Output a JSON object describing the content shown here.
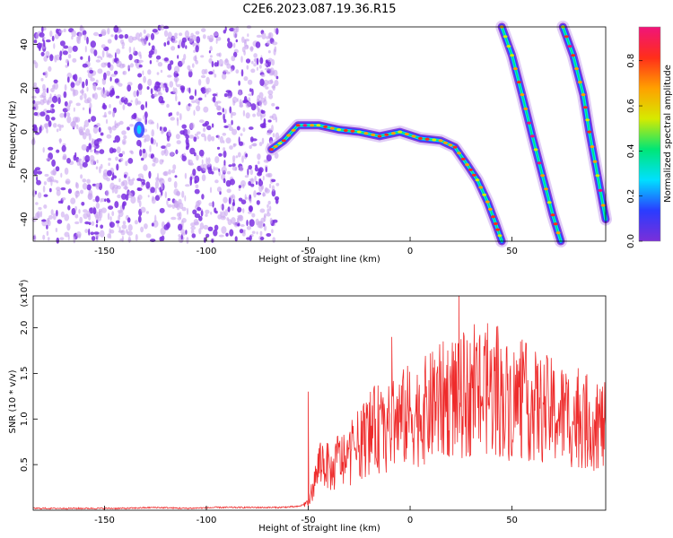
{
  "figure": {
    "title": "C2E6.2023.087.19.36.R15"
  },
  "chart_data": [
    {
      "type": "heatmap",
      "xlabel": "Height of straight line (km)",
      "ylabel": "Frequency (Hz)",
      "xlim": [
        -185,
        96
      ],
      "ylim": [
        -50,
        48
      ],
      "x_ticks": [
        "-150",
        "-100",
        "-50",
        "0",
        "50"
      ],
      "x_tick_values": [
        -150,
        -100,
        -50,
        0,
        50
      ],
      "y_ticks": [
        "-40",
        "-20",
        "0",
        "20",
        "40"
      ],
      "y_tick_values": [
        -40,
        -20,
        0,
        20,
        40
      ],
      "grid": false,
      "colorbar": {
        "label": "Normalized spectral amplitude",
        "ticks": [
          "0.0",
          "0.2",
          "0.4",
          "0.6",
          "0.8"
        ],
        "tick_values": [
          0.0,
          0.2,
          0.4,
          0.6,
          0.8
        ],
        "range": [
          0,
          0.95
        ],
        "colormap": [
          "#7b2fd8",
          "#2a3cff",
          "#00e0ff",
          "#00e676",
          "#d6ea00",
          "#ffa000",
          "#ff2e1a",
          "#f0147a"
        ]
      },
      "noise_region": {
        "x": [
          -185,
          -65
        ],
        "y": [
          -50,
          48
        ],
        "amplitude": 0.1
      },
      "ridges": [
        {
          "name": "",
          "points": [
            [
              -68,
              -8
            ],
            [
              -62,
              -4
            ],
            [
              -55,
              3
            ],
            [
              -45,
              3
            ],
            [
              -35,
              1
            ],
            [
              -25,
              0
            ],
            [
              -15,
              -2
            ],
            [
              -5,
              0
            ],
            [
              5,
              -3
            ],
            [
              15,
              -4
            ],
            [
              22,
              -7
            ],
            [
              28,
              -15
            ],
            [
              33,
              -22
            ],
            [
              38,
              -32
            ],
            [
              42,
              -42
            ],
            [
              45,
              -50
            ]
          ]
        },
        {
          "name": "",
          "points": [
            [
              45,
              48
            ],
            [
              50,
              35
            ],
            [
              55,
              17
            ],
            [
              60,
              -2
            ],
            [
              65,
              -20
            ],
            [
              70,
              -38
            ],
            [
              74,
              -50
            ]
          ]
        },
        {
          "name": "",
          "points": [
            [
              75,
              48
            ],
            [
              80,
              35
            ],
            [
              85,
              17
            ],
            [
              88,
              0
            ],
            [
              92,
              -20
            ],
            [
              96,
              -40
            ]
          ]
        }
      ],
      "blob": {
        "x": -133,
        "y": 1,
        "amplitude": 0.2
      }
    },
    {
      "type": "line",
      "xlabel": "Height of straight line (km)",
      "ylabel": "SNR (10 * v/v)",
      "y_multiplier": "(x10",
      "y_multiplier_exp": "4",
      "y_multiplier_close": ")",
      "xlim": [
        -185,
        96
      ],
      "ylim": [
        0,
        2.35
      ],
      "x_ticks": [
        "-150",
        "-100",
        "-50",
        "0",
        "50"
      ],
      "x_tick_values": [
        -150,
        -100,
        -50,
        0,
        50
      ],
      "y_ticks": [
        "0.5",
        "1.0",
        "1.5",
        "2.0"
      ],
      "y_tick_values": [
        0.5,
        1.0,
        1.5,
        2.0
      ],
      "grid": false,
      "series": [
        {
          "name": "",
          "color": "#ee2b2b",
          "x": [
            -185,
            -170,
            -155,
            -140,
            -125,
            -110,
            -95,
            -80,
            -65,
            -55,
            -50,
            -47,
            -44,
            -41,
            -38,
            -35,
            -32,
            -28,
            -24,
            -20,
            -16,
            -12,
            -8,
            -4,
            0,
            4,
            8,
            12,
            16,
            20,
            24,
            28,
            32,
            36,
            40,
            44,
            48,
            52,
            56,
            60,
            64,
            68,
            72,
            76,
            80,
            84,
            88,
            92,
            96
          ],
          "y": [
            0.02,
            0.02,
            0.02,
            0.02,
            0.03,
            0.02,
            0.03,
            0.03,
            0.03,
            0.04,
            0.08,
            0.3,
            0.55,
            0.5,
            0.4,
            0.6,
            0.5,
            0.65,
            0.75,
            0.85,
            0.9,
            0.85,
            0.95,
            1.0,
            1.05,
            1.05,
            1.1,
            1.15,
            1.2,
            1.25,
            1.2,
            1.25,
            1.3,
            1.25,
            1.3,
            1.25,
            1.2,
            1.2,
            1.2,
            1.15,
            1.1,
            1.1,
            1.05,
            1.05,
            1.0,
            1.0,
            0.95,
            0.95,
            0.9
          ],
          "peaks": [
            {
              "x": 24,
              "y": 2.35
            },
            {
              "x": 38,
              "y": 2.05
            },
            {
              "x": -9,
              "y": 1.9
            },
            {
              "x": 43,
              "y": 2.02
            },
            {
              "x": 55,
              "y": 1.87
            },
            {
              "x": 12,
              "y": 1.65
            },
            {
              "x": 67,
              "y": 1.7
            },
            {
              "x": -50,
              "y": 1.3
            }
          ]
        }
      ]
    }
  ]
}
